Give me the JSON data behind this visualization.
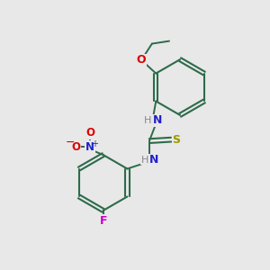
{
  "background_color": "#e8e8e8",
  "bond_color": "#2d6b4a",
  "atom_colors": {
    "N": "#2222cc",
    "O": "#dd0000",
    "S": "#999900",
    "F": "#cc00cc",
    "H": "#888888",
    "C": "#2d6b4a"
  },
  "figsize": [
    3.0,
    3.0
  ],
  "dpi": 100
}
